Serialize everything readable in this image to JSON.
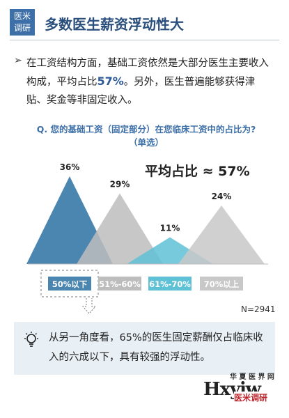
{
  "header": {
    "badge_line1": "医米",
    "badge_line2": "调研",
    "title": "多数医生薪资浮动性大"
  },
  "intro": {
    "bullet": "➢",
    "pre": "在工资结构方面，基础工资依然是大部分医生主要收入构成，平均占比",
    "highlight": "57%",
    "post": "。另外，医生普遍能够获得津贴、奖金等非固定收入。"
  },
  "question": {
    "line1": "Q. 您的基础工资（固定部分）在您临床工资中的占比为?",
    "line2": "（单选）"
  },
  "average_label": "平均占比 ≈ 57%",
  "sample_size": "N=2941",
  "note": {
    "text": "从另一角度看，65%的医生固定薪酬仅占临床收入的六成以下，具有较强的浮动性。"
  },
  "logo": {
    "top": "华 夏 医 界 网",
    "main": "Hxyjw",
    "sub": "医米调研",
    "url": ".com"
  },
  "colors": {
    "accent": "#3d6fa8",
    "highlight_fill": "#4a86b0",
    "gray_fill": "#bdbdbd",
    "teal_fill": "#5fc1d6",
    "gray_light": "#c8c8c8"
  },
  "chart_data": {
    "type": "area",
    "style": "triangle-peaks",
    "categories": [
      "50%以下",
      "51%-60%",
      "61%-70%",
      "70%以上"
    ],
    "values": [
      36,
      29,
      11,
      24
    ],
    "value_labels": [
      "36%",
      "29%",
      "11%",
      "24%"
    ],
    "colors": [
      "#4a86b0",
      "#bdbdbd",
      "#5fc1d6",
      "#c8c8c8"
    ],
    "highlighted_category": "50%以下",
    "ylim": [
      0,
      40
    ]
  }
}
